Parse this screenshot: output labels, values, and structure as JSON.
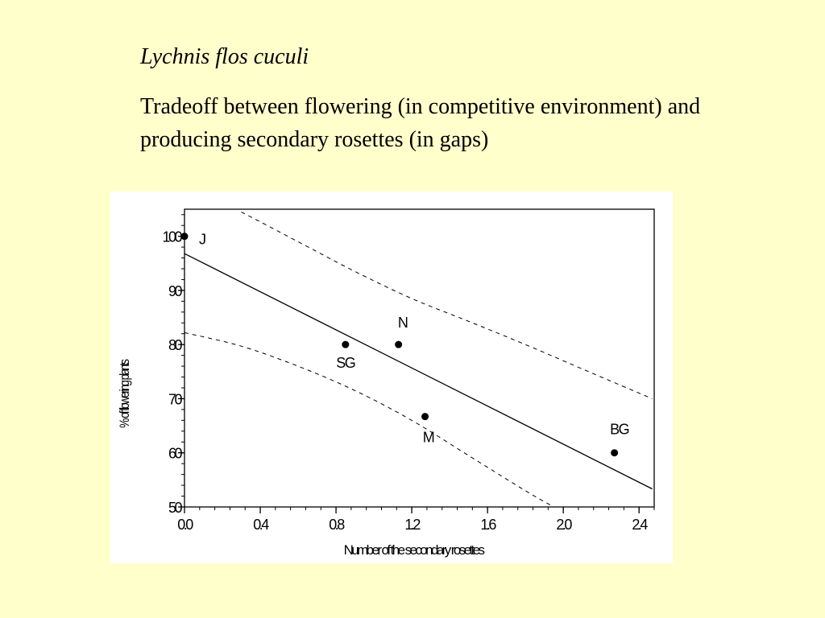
{
  "slide": {
    "title": "Lychnis flos cuculi",
    "description": "Tradeoff between flowering (in competitive environment) and producing secondary rosettes (in gaps)"
  },
  "chart_data": {
    "type": "scatter",
    "xlabel": "Number of the secondary rosettes",
    "ylabel": "% of flowering plants",
    "xlim": [
      0.0,
      2.48
    ],
    "ylim": [
      50,
      105
    ],
    "x_ticks": [
      0.0,
      0.4,
      0.8,
      1.2,
      1.6,
      2.0,
      2.4
    ],
    "x_tick_labels": [
      "0.0",
      "0.4",
      "0.8",
      "1.2",
      "1.6",
      "2.0",
      "2.4"
    ],
    "y_ticks": [
      50,
      60,
      70,
      80,
      90,
      100
    ],
    "y_tick_labels": [
      "50",
      "60",
      "70",
      "80",
      "90",
      "100"
    ],
    "grid": false,
    "points": [
      {
        "label": "J",
        "x": 0.0,
        "y": 100.0
      },
      {
        "label": "SG",
        "x": 0.85,
        "y": 80.0
      },
      {
        "label": "N",
        "x": 1.13,
        "y": 80.0
      },
      {
        "label": "M",
        "x": 1.27,
        "y": 66.7
      },
      {
        "label": "BG",
        "x": 2.27,
        "y": 60.0
      }
    ],
    "regression_line": {
      "intercept": 96.8,
      "slope": -17.6
    },
    "confidence_upper": [
      {
        "x": 0.3,
        "y": 104.5
      },
      {
        "x": 0.6,
        "y": 99.0
      },
      {
        "x": 0.9,
        "y": 93.5
      },
      {
        "x": 1.2,
        "y": 88.5
      },
      {
        "x": 1.5,
        "y": 84.3
      },
      {
        "x": 1.8,
        "y": 80.0
      },
      {
        "x": 2.1,
        "y": 75.5
      },
      {
        "x": 2.47,
        "y": 70.0
      }
    ],
    "confidence_lower": [
      {
        "x": 0.0,
        "y": 82.2
      },
      {
        "x": 0.3,
        "y": 79.7
      },
      {
        "x": 0.6,
        "y": 76.0
      },
      {
        "x": 0.9,
        "y": 71.5
      },
      {
        "x": 1.2,
        "y": 66.0
      },
      {
        "x": 1.5,
        "y": 59.5
      },
      {
        "x": 1.8,
        "y": 53.0
      },
      {
        "x": 1.95,
        "y": 50.0
      }
    ]
  }
}
